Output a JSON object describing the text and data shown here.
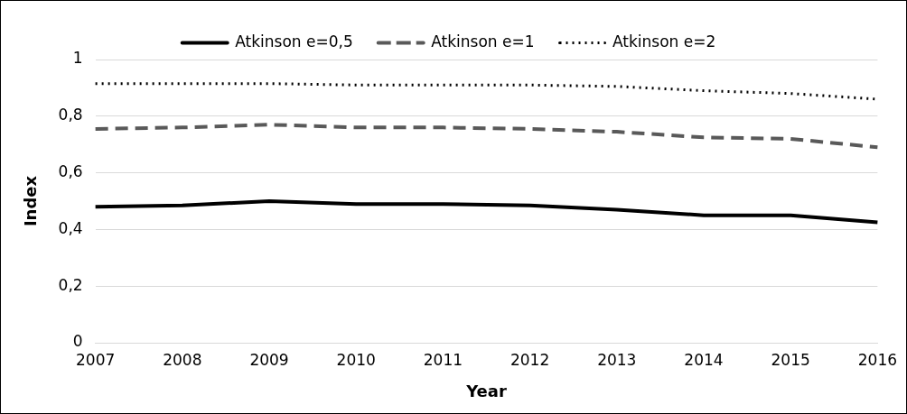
{
  "chart_data": {
    "type": "line",
    "xlabel": "Year",
    "ylabel": "Index",
    "categories": [
      "2007",
      "2008",
      "2009",
      "2010",
      "2011",
      "2012",
      "2013",
      "2014",
      "2015",
      "2016"
    ],
    "series": [
      {
        "name": "Atkinson e=0,5",
        "color": "#000000",
        "line_style": "solid",
        "values": [
          0.48,
          0.485,
          0.5,
          0.49,
          0.49,
          0.485,
          0.47,
          0.45,
          0.45,
          0.425
        ]
      },
      {
        "name": "Atkinson e=1",
        "color": "#595959",
        "line_style": "dashed",
        "values": [
          0.755,
          0.76,
          0.77,
          0.76,
          0.76,
          0.755,
          0.745,
          0.725,
          0.72,
          0.69
        ]
      },
      {
        "name": "Atkinson e=2",
        "color": "#000000",
        "line_style": "dotted",
        "values": [
          0.915,
          0.915,
          0.915,
          0.91,
          0.91,
          0.91,
          0.905,
          0.89,
          0.88,
          0.86
        ]
      }
    ],
    "ylim": [
      0,
      1
    ],
    "yticks": [
      {
        "value": 0,
        "label": "0"
      },
      {
        "value": 0.2,
        "label": "0,2"
      },
      {
        "value": 0.4,
        "label": "0,4"
      },
      {
        "value": 0.6,
        "label": "0,6"
      },
      {
        "value": 0.8,
        "label": "0,8"
      },
      {
        "value": 1,
        "label": "1"
      }
    ],
    "grid": "y",
    "legend": "top",
    "marker": "none"
  }
}
